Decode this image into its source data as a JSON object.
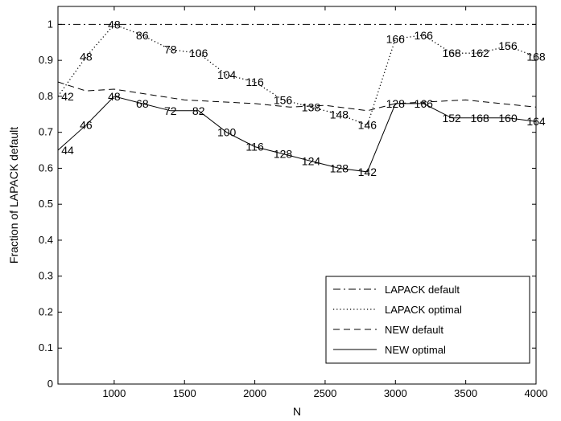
{
  "chart_data": {
    "type": "line",
    "title": "",
    "xlabel": "N",
    "ylabel": "Fraction of LAPACK default",
    "xlim": [
      600,
      4000
    ],
    "ylim": [
      0,
      1.05
    ],
    "xticks": [
      1000,
      1500,
      2000,
      2500,
      3000,
      3500,
      4000
    ],
    "yticks": [
      0,
      0.1,
      0.2,
      0.3,
      0.4,
      0.5,
      0.6,
      0.7,
      0.8,
      0.9,
      1
    ],
    "ytick_labels": [
      "0",
      "0.1",
      "0.2",
      "0.3",
      "0.4",
      "0.5",
      "0.6",
      "0.7",
      "0.8",
      "0.9",
      "1"
    ],
    "grid": false,
    "legend_position": "bottom-right",
    "series": [
      {
        "name": "LAPACK default",
        "style": "dashdot",
        "x": [
          600,
          4000
        ],
        "y": [
          1.0,
          1.0
        ],
        "labels": []
      },
      {
        "name": "LAPACK optimal",
        "style": "dotted",
        "x": [
          600,
          800,
          1000,
          1200,
          1400,
          1600,
          1800,
          2000,
          2200,
          2400,
          2600,
          2800,
          3000,
          3200,
          3400,
          3600,
          3800,
          4000
        ],
        "y": [
          0.8,
          0.91,
          1.0,
          0.97,
          0.93,
          0.92,
          0.86,
          0.84,
          0.79,
          0.77,
          0.75,
          0.72,
          0.96,
          0.97,
          0.92,
          0.92,
          0.94,
          0.91
        ],
        "labels": [
          "42",
          "48",
          "48",
          "86",
          "78",
          "106",
          "104",
          "116",
          "156",
          "138",
          "148",
          "146",
          "166",
          "166",
          "168",
          "162",
          "156",
          "168"
        ]
      },
      {
        "name": "NEW default",
        "style": "dashed",
        "x": [
          600,
          800,
          1000,
          1500,
          2000,
          2250,
          2500,
          2800,
          3000,
          3500,
          4000
        ],
        "y": [
          0.84,
          0.815,
          0.82,
          0.79,
          0.78,
          0.77,
          0.775,
          0.76,
          0.78,
          0.79,
          0.77
        ],
        "labels": []
      },
      {
        "name": "NEW optimal",
        "style": "solid",
        "x": [
          600,
          800,
          1000,
          1200,
          1400,
          1600,
          1800,
          2000,
          2200,
          2400,
          2600,
          2800,
          3000,
          3200,
          3400,
          3600,
          3800,
          4000
        ],
        "y": [
          0.65,
          0.72,
          0.8,
          0.78,
          0.76,
          0.76,
          0.7,
          0.66,
          0.64,
          0.62,
          0.6,
          0.59,
          0.78,
          0.78,
          0.74,
          0.74,
          0.74,
          0.73
        ],
        "labels": [
          "44",
          "46",
          "48",
          "68",
          "72",
          "82",
          "100",
          "116",
          "128",
          "124",
          "128",
          "142",
          "128",
          "166",
          "152",
          "168",
          "160",
          "164"
        ]
      }
    ]
  }
}
